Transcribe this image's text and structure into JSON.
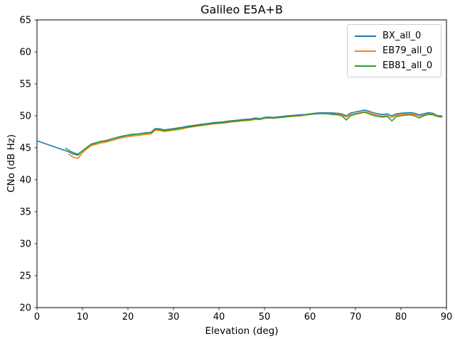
{
  "chart_data": {
    "type": "line",
    "title": "Galileo E5A+B",
    "xlabel": "Elevation (deg)",
    "ylabel": "CNo (dB Hz)",
    "xlim": [
      0,
      90
    ],
    "ylim": [
      20,
      65
    ],
    "xticks": [
      0,
      10,
      20,
      30,
      40,
      50,
      60,
      70,
      80,
      90
    ],
    "yticks": [
      20,
      25,
      30,
      35,
      40,
      45,
      50,
      55,
      60,
      65
    ],
    "grid": false,
    "legend_position": "upper right",
    "series": [
      {
        "name": "BX_all_0",
        "color": "#1f77b4",
        "points": [
          [
            0,
            46.1
          ],
          [
            7,
            44.35
          ],
          [
            8,
            44.0
          ],
          [
            9,
            43.85
          ],
          [
            10,
            44.5
          ],
          [
            11,
            45.1
          ],
          [
            12,
            45.6
          ],
          [
            13,
            45.8
          ],
          [
            14,
            46.0
          ],
          [
            15,
            46.1
          ],
          [
            16,
            46.3
          ],
          [
            17,
            46.5
          ],
          [
            18,
            46.7
          ],
          [
            19,
            46.85
          ],
          [
            20,
            47.0
          ],
          [
            21,
            47.1
          ],
          [
            22,
            47.15
          ],
          [
            23,
            47.25
          ],
          [
            24,
            47.35
          ],
          [
            25,
            47.4
          ],
          [
            26,
            48.0
          ],
          [
            27,
            47.95
          ],
          [
            28,
            47.8
          ],
          [
            29,
            47.9
          ],
          [
            30,
            48.0
          ],
          [
            31,
            48.1
          ],
          [
            32,
            48.2
          ],
          [
            33,
            48.35
          ],
          [
            34,
            48.45
          ],
          [
            35,
            48.55
          ],
          [
            36,
            48.65
          ],
          [
            37,
            48.75
          ],
          [
            38,
            48.85
          ],
          [
            39,
            48.95
          ],
          [
            40,
            49.0
          ],
          [
            41,
            49.05
          ],
          [
            42,
            49.15
          ],
          [
            43,
            49.25
          ],
          [
            44,
            49.3
          ],
          [
            45,
            49.4
          ],
          [
            46,
            49.45
          ],
          [
            47,
            49.5
          ],
          [
            48,
            49.65
          ],
          [
            49,
            49.55
          ],
          [
            50,
            49.75
          ],
          [
            51,
            49.8
          ],
          [
            52,
            49.75
          ],
          [
            53,
            49.85
          ],
          [
            54,
            49.9
          ],
          [
            55,
            50.0
          ],
          [
            56,
            50.05
          ],
          [
            57,
            50.1
          ],
          [
            58,
            50.15
          ],
          [
            59,
            50.2
          ],
          [
            60,
            50.3
          ],
          [
            61,
            50.4
          ],
          [
            62,
            50.45
          ],
          [
            63,
            50.5
          ],
          [
            64,
            50.45
          ],
          [
            65,
            50.45
          ],
          [
            66,
            50.4
          ],
          [
            67,
            50.3
          ],
          [
            68,
            50.0
          ],
          [
            69,
            50.45
          ],
          [
            70,
            50.6
          ],
          [
            71,
            50.75
          ],
          [
            72,
            50.9
          ],
          [
            73,
            50.7
          ],
          [
            74,
            50.45
          ],
          [
            75,
            50.3
          ],
          [
            76,
            50.2
          ],
          [
            77,
            50.3
          ],
          [
            78,
            50.0
          ],
          [
            79,
            50.3
          ],
          [
            80,
            50.4
          ],
          [
            81,
            50.45
          ],
          [
            82,
            50.5
          ],
          [
            83,
            50.4
          ],
          [
            84,
            50.15
          ],
          [
            85,
            50.3
          ],
          [
            86,
            50.5
          ],
          [
            87,
            50.4
          ],
          [
            88,
            50.05
          ],
          [
            89,
            50.0
          ]
        ]
      },
      {
        "name": "EB79_all_0",
        "color": "#ff7f0e",
        "points": [
          [
            7,
            44.0
          ],
          [
            8,
            43.5
          ],
          [
            9,
            43.35
          ],
          [
            10,
            44.2
          ],
          [
            11,
            44.85
          ],
          [
            12,
            45.35
          ],
          [
            13,
            45.55
          ],
          [
            14,
            45.75
          ],
          [
            15,
            45.85
          ],
          [
            16,
            46.05
          ],
          [
            17,
            46.25
          ],
          [
            18,
            46.45
          ],
          [
            19,
            46.6
          ],
          [
            20,
            46.75
          ],
          [
            21,
            46.85
          ],
          [
            22,
            46.9
          ],
          [
            23,
            47.0
          ],
          [
            24,
            47.1
          ],
          [
            25,
            47.15
          ],
          [
            26,
            47.75
          ],
          [
            27,
            47.7
          ],
          [
            28,
            47.55
          ],
          [
            29,
            47.65
          ],
          [
            30,
            47.75
          ],
          [
            31,
            47.85
          ],
          [
            32,
            47.95
          ],
          [
            33,
            48.15
          ],
          [
            34,
            48.25
          ],
          [
            35,
            48.35
          ],
          [
            36,
            48.45
          ],
          [
            37,
            48.55
          ],
          [
            38,
            48.65
          ],
          [
            39,
            48.75
          ],
          [
            40,
            48.8
          ],
          [
            41,
            48.85
          ],
          [
            42,
            48.95
          ],
          [
            43,
            49.05
          ],
          [
            44,
            49.1
          ],
          [
            45,
            49.2
          ],
          [
            46,
            49.25
          ],
          [
            47,
            49.3
          ],
          [
            48,
            49.45
          ],
          [
            49,
            49.4
          ],
          [
            50,
            49.6
          ],
          [
            51,
            49.65
          ],
          [
            52,
            49.6
          ],
          [
            53,
            49.7
          ],
          [
            54,
            49.75
          ],
          [
            55,
            49.85
          ],
          [
            56,
            49.9
          ],
          [
            57,
            49.95
          ],
          [
            58,
            50.0
          ],
          [
            59,
            50.1
          ],
          [
            60,
            50.2
          ],
          [
            61,
            50.3
          ],
          [
            62,
            50.35
          ],
          [
            63,
            50.4
          ],
          [
            64,
            50.35
          ],
          [
            65,
            50.3
          ],
          [
            66,
            50.25
          ],
          [
            67,
            50.15
          ],
          [
            68,
            49.8
          ],
          [
            69,
            50.2
          ],
          [
            70,
            50.35
          ],
          [
            71,
            50.5
          ],
          [
            72,
            50.65
          ],
          [
            73,
            50.45
          ],
          [
            74,
            50.2
          ],
          [
            75,
            50.05
          ],
          [
            76,
            49.95
          ],
          [
            77,
            50.05
          ],
          [
            78,
            49.75
          ],
          [
            79,
            50.1
          ],
          [
            80,
            50.2
          ],
          [
            81,
            50.25
          ],
          [
            82,
            50.3
          ],
          [
            83,
            50.2
          ],
          [
            84,
            49.95
          ],
          [
            85,
            50.1
          ],
          [
            86,
            50.3
          ],
          [
            87,
            50.25
          ],
          [
            88,
            50.0
          ],
          [
            89,
            49.9
          ]
        ]
      },
      {
        "name": "EB81_all_0",
        "color": "#2ca02c",
        "points": [
          [
            6.3,
            44.9
          ],
          [
            7,
            44.6
          ],
          [
            8,
            44.25
          ],
          [
            9,
            44.0
          ],
          [
            10,
            44.55
          ],
          [
            11,
            45.1
          ],
          [
            12,
            45.55
          ],
          [
            13,
            45.75
          ],
          [
            14,
            45.95
          ],
          [
            15,
            46.05
          ],
          [
            16,
            46.25
          ],
          [
            17,
            46.45
          ],
          [
            18,
            46.65
          ],
          [
            19,
            46.8
          ],
          [
            20,
            46.95
          ],
          [
            21,
            47.05
          ],
          [
            22,
            47.1
          ],
          [
            23,
            47.2
          ],
          [
            24,
            47.3
          ],
          [
            25,
            47.35
          ],
          [
            26,
            47.9
          ],
          [
            27,
            47.85
          ],
          [
            28,
            47.7
          ],
          [
            29,
            47.8
          ],
          [
            30,
            47.9
          ],
          [
            31,
            48.0
          ],
          [
            32,
            48.1
          ],
          [
            33,
            48.25
          ],
          [
            34,
            48.35
          ],
          [
            35,
            48.45
          ],
          [
            36,
            48.55
          ],
          [
            37,
            48.65
          ],
          [
            38,
            48.75
          ],
          [
            39,
            48.85
          ],
          [
            40,
            48.9
          ],
          [
            41,
            48.95
          ],
          [
            42,
            49.05
          ],
          [
            43,
            49.15
          ],
          [
            44,
            49.2
          ],
          [
            45,
            49.3
          ],
          [
            46,
            49.35
          ],
          [
            47,
            49.4
          ],
          [
            48,
            49.55
          ],
          [
            49,
            49.5
          ],
          [
            50,
            49.65
          ],
          [
            51,
            49.7
          ],
          [
            52,
            49.65
          ],
          [
            53,
            49.75
          ],
          [
            54,
            49.8
          ],
          [
            55,
            49.9
          ],
          [
            56,
            49.95
          ],
          [
            57,
            50.0
          ],
          [
            58,
            50.05
          ],
          [
            59,
            50.15
          ],
          [
            60,
            50.25
          ],
          [
            61,
            50.3
          ],
          [
            62,
            50.35
          ],
          [
            63,
            50.35
          ],
          [
            64,
            50.3
          ],
          [
            65,
            50.2
          ],
          [
            66,
            50.15
          ],
          [
            67,
            50.0
          ],
          [
            68,
            49.35
          ],
          [
            69,
            50.05
          ],
          [
            70,
            50.25
          ],
          [
            71,
            50.4
          ],
          [
            72,
            50.55
          ],
          [
            73,
            50.3
          ],
          [
            74,
            50.05
          ],
          [
            75,
            49.9
          ],
          [
            76,
            49.8
          ],
          [
            77,
            49.9
          ],
          [
            78,
            49.2
          ],
          [
            79,
            49.9
          ],
          [
            80,
            50.0
          ],
          [
            81,
            50.1
          ],
          [
            82,
            50.15
          ],
          [
            83,
            50.0
          ],
          [
            84,
            49.65
          ],
          [
            85,
            50.0
          ],
          [
            86,
            50.2
          ],
          [
            87,
            50.15
          ],
          [
            88,
            49.9
          ],
          [
            89,
            49.8
          ]
        ]
      }
    ]
  },
  "legend": {
    "items": [
      {
        "label": "BX_all_0",
        "color": "#1f77b4"
      },
      {
        "label": "EB79_all_0",
        "color": "#ff7f0e"
      },
      {
        "label": "EB81_all_0",
        "color": "#2ca02c"
      }
    ]
  },
  "axes_style": {
    "spine_color": "#000000",
    "tick_color": "#000000",
    "text_color": "#000000",
    "background": "#ffffff"
  }
}
